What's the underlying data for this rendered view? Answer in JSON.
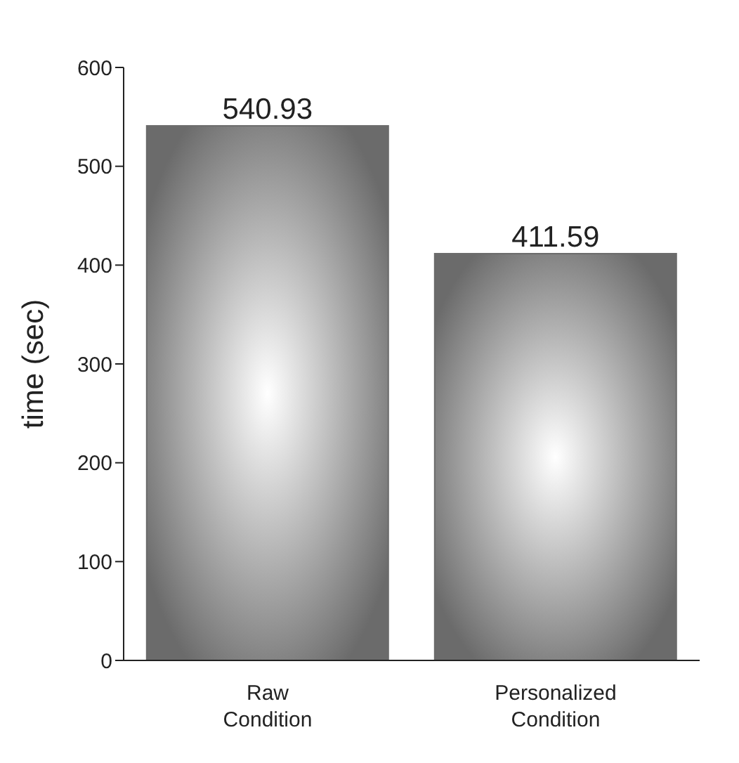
{
  "chart_data": {
    "type": "bar",
    "ylabel": "time (sec)",
    "categories": [
      "Raw Condition",
      "Personalized Condition"
    ],
    "values": [
      540.93,
      411.59
    ],
    "color": "#6b6b6b",
    "ylim": [
      0,
      600
    ],
    "yticks": [
      0,
      100,
      200,
      300,
      400,
      500,
      600
    ],
    "data_labels": true
  }
}
